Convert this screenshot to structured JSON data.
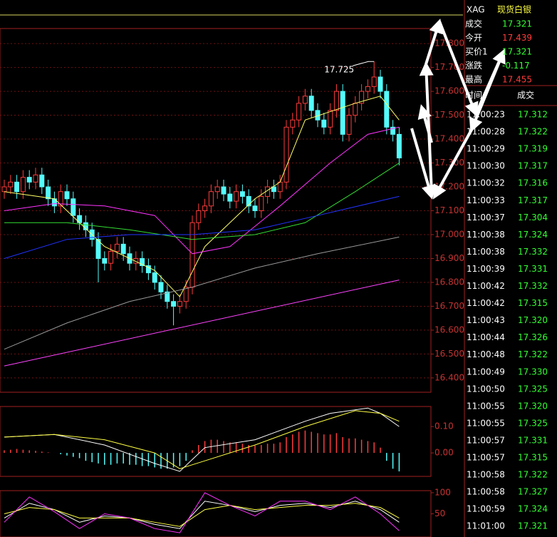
{
  "chart_data": [
    {
      "type": "candlestick",
      "open": [
        17.18,
        17.2,
        17.22,
        17.18,
        17.24,
        17.22,
        17.25,
        17.2,
        17.15,
        17.12,
        17.18,
        17.15,
        17.08,
        17.05,
        17.02,
        16.98,
        16.9,
        16.88,
        16.93,
        16.96,
        16.92,
        16.88,
        16.9,
        16.87,
        16.84,
        16.8,
        16.76,
        16.72,
        16.7,
        16.72,
        16.78,
        17.05,
        17.1,
        17.12,
        17.18,
        17.2,
        17.17,
        17.14,
        17.18,
        17.16,
        17.12,
        17.1,
        17.16,
        17.2,
        17.18,
        17.22,
        17.45,
        17.48,
        17.55,
        17.58,
        17.52,
        17.48,
        17.45,
        17.52,
        17.6,
        17.42,
        17.5,
        17.55,
        17.6,
        17.62,
        17.66,
        17.6,
        17.45,
        17.42
      ],
      "high": [
        17.23,
        17.25,
        17.25,
        17.27,
        17.27,
        17.28,
        17.28,
        17.23,
        17.18,
        17.21,
        17.21,
        17.18,
        17.11,
        17.08,
        17.05,
        17.01,
        16.93,
        16.96,
        16.99,
        16.99,
        16.95,
        16.93,
        16.93,
        16.9,
        16.87,
        16.83,
        16.79,
        16.75,
        16.75,
        16.81,
        17.08,
        17.13,
        17.15,
        17.21,
        17.23,
        17.23,
        17.2,
        17.21,
        17.21,
        17.19,
        17.15,
        17.19,
        17.23,
        17.23,
        17.25,
        17.48,
        17.51,
        17.58,
        17.61,
        17.61,
        17.55,
        17.51,
        17.55,
        17.63,
        17.63,
        17.53,
        17.58,
        17.63,
        17.65,
        17.725,
        17.69,
        17.63,
        17.48,
        17.45
      ],
      "low": [
        17.15,
        17.17,
        17.15,
        17.15,
        17.19,
        17.19,
        17.17,
        17.12,
        17.09,
        17.09,
        17.12,
        17.05,
        17.02,
        16.99,
        16.95,
        16.8,
        16.85,
        16.85,
        16.9,
        16.89,
        16.85,
        16.85,
        16.84,
        16.81,
        16.77,
        16.73,
        16.69,
        16.62,
        16.67,
        16.69,
        16.75,
        17.02,
        17.07,
        17.09,
        17.15,
        17.14,
        17.11,
        17.11,
        17.13,
        17.09,
        17.07,
        17.07,
        17.13,
        17.15,
        17.15,
        17.19,
        17.42,
        17.45,
        17.52,
        17.49,
        17.45,
        17.42,
        17.42,
        17.49,
        17.39,
        17.39,
        17.47,
        17.52,
        17.57,
        17.59,
        17.57,
        17.42,
        17.39,
        17.29
      ],
      "close": [
        17.2,
        17.22,
        17.18,
        17.24,
        17.22,
        17.25,
        17.2,
        17.15,
        17.12,
        17.18,
        17.15,
        17.08,
        17.05,
        17.02,
        16.98,
        16.9,
        16.88,
        16.93,
        16.96,
        16.92,
        16.88,
        16.9,
        16.87,
        16.84,
        16.8,
        16.76,
        16.72,
        16.7,
        16.72,
        16.78,
        17.05,
        17.1,
        17.12,
        17.18,
        17.2,
        17.17,
        17.14,
        17.18,
        17.16,
        17.12,
        17.1,
        17.16,
        17.2,
        17.18,
        17.22,
        17.45,
        17.48,
        17.55,
        17.58,
        17.52,
        17.48,
        17.45,
        17.52,
        17.6,
        17.42,
        17.5,
        17.55,
        17.6,
        17.62,
        17.66,
        17.6,
        17.45,
        17.42,
        17.321
      ],
      "up_color": "#ff3c3c",
      "down_color": "#54fcfc",
      "ylim": [
        16.34,
        17.863
      ],
      "yticks": [
        {
          "value": 16.4,
          "label": "16.400"
        },
        {
          "value": 16.5,
          "label": "16.500"
        },
        {
          "value": 16.6,
          "label": "16.600"
        },
        {
          "value": 16.7,
          "label": "16.700"
        },
        {
          "value": 16.8,
          "label": "16.800"
        },
        {
          "value": 16.9,
          "label": "16.900"
        },
        {
          "value": 17.0,
          "label": "17.000"
        },
        {
          "value": 17.1,
          "label": "17.100"
        },
        {
          "value": 17.2,
          "label": "17.200"
        },
        {
          "value": 17.3,
          "label": "17.300"
        },
        {
          "value": 17.4,
          "label": "17.400"
        },
        {
          "value": 17.5,
          "label": "17.500"
        },
        {
          "value": 17.6,
          "label": "17.600"
        },
        {
          "value": 17.7,
          "label": "17.700"
        },
        {
          "value": 17.8,
          "label": "17.800"
        }
      ],
      "grid": true,
      "annotation": "17.725",
      "lines": [
        {
          "color": "#ffff66",
          "x": [
            0,
            8,
            16,
            24,
            28,
            32,
            40,
            44,
            48,
            56,
            60,
            63
          ],
          "values": [
            17.18,
            17.15,
            16.95,
            16.85,
            16.74,
            16.95,
            17.15,
            17.22,
            17.48,
            17.55,
            17.58,
            17.48
          ]
        },
        {
          "color": "#ff33ff",
          "x": [
            0,
            8,
            16,
            24,
            30,
            36,
            44,
            52,
            58,
            63
          ],
          "values": [
            17.1,
            17.13,
            17.12,
            17.08,
            16.92,
            16.95,
            17.12,
            17.3,
            17.42,
            17.45
          ]
        },
        {
          "color": "#33dd33",
          "x": [
            0,
            10,
            20,
            30,
            40,
            48,
            56,
            63
          ],
          "values": [
            17.05,
            17.05,
            17.02,
            16.98,
            17.0,
            17.05,
            17.18,
            17.3
          ]
        },
        {
          "color": "#2233ff",
          "x": [
            0,
            10,
            20,
            30,
            40,
            50,
            63
          ],
          "values": [
            16.9,
            16.98,
            17.0,
            17.0,
            17.02,
            17.08,
            17.16
          ]
        },
        {
          "color": "#999999",
          "x": [
            0,
            10,
            20,
            30,
            40,
            50,
            63
          ],
          "values": [
            16.52,
            16.63,
            16.72,
            16.78,
            16.86,
            16.92,
            16.99
          ]
        },
        {
          "color": "#ff44ff",
          "x": [
            0,
            63
          ],
          "values": [
            16.45,
            16.81
          ]
        }
      ]
    },
    {
      "type": "macd",
      "values": [
        0.01,
        0.012,
        0.015,
        0.012,
        0.01,
        0.008,
        0.005,
        0.002,
        0,
        -0.005,
        -0.01,
        -0.015,
        -0.02,
        -0.03,
        -0.035,
        -0.04,
        -0.045,
        -0.045,
        -0.04,
        -0.04,
        -0.045,
        -0.045,
        -0.05,
        -0.05,
        -0.055,
        -0.06,
        -0.06,
        -0.055,
        -0.05,
        -0.03,
        0.01,
        0.03,
        0.045,
        0.05,
        0.05,
        0.045,
        0.04,
        0.04,
        0.035,
        0.03,
        0.028,
        0.03,
        0.035,
        0.035,
        0.04,
        0.06,
        0.07,
        0.08,
        0.085,
        0.08,
        0.075,
        0.07,
        0.07,
        0.075,
        0.06,
        0.055,
        0.055,
        0.05,
        0.045,
        0.04,
        0.02,
        -0.03,
        -0.06,
        -0.07
      ],
      "up_color": "#ff3c3c",
      "down_color": "#54fcfc",
      "ylim": [
        -0.089,
        0.176
      ],
      "yticks": [
        {
          "value": 0.1,
          "label": "0.10"
        },
        {
          "value": 0,
          "label": "0.00"
        }
      ],
      "lines": [
        {
          "color": "#ffffff",
          "x": [
            0,
            8,
            16,
            24,
            28,
            32,
            40,
            48,
            52,
            58,
            60,
            63
          ],
          "values": [
            0.06,
            0.07,
            0.03,
            -0.04,
            -0.07,
            0.02,
            0.05,
            0.12,
            0.15,
            0.17,
            0.15,
            0.1
          ]
        },
        {
          "color": "#ffff44",
          "x": [
            0,
            8,
            16,
            24,
            28,
            32,
            40,
            48,
            56,
            60,
            63
          ],
          "values": [
            0.06,
            0.07,
            0.05,
            0.0,
            -0.06,
            -0.03,
            0.03,
            0.1,
            0.16,
            0.15,
            0.12
          ]
        }
      ]
    },
    {
      "type": "line",
      "ylim": [
        -5,
        105
      ],
      "yticks": [
        100,
        50
      ],
      "lines": [
        {
          "color": "#ffffff",
          "x": [
            0,
            4,
            8,
            12,
            16,
            20,
            24,
            28,
            32,
            36,
            40,
            44,
            48,
            52,
            56,
            60,
            63
          ],
          "values": [
            40,
            75,
            60,
            30,
            45,
            40,
            25,
            15,
            80,
            70,
            55,
            70,
            75,
            65,
            80,
            60,
            30
          ]
        },
        {
          "color": "#ffff44",
          "x": [
            0,
            4,
            8,
            12,
            16,
            20,
            24,
            28,
            32,
            36,
            40,
            44,
            48,
            52,
            56,
            60,
            63
          ],
          "values": [
            50,
            65,
            60,
            40,
            40,
            40,
            30,
            20,
            60,
            70,
            60,
            65,
            70,
            70,
            75,
            65,
            40
          ]
        },
        {
          "color": "#ff33ff",
          "x": [
            0,
            4,
            8,
            12,
            16,
            20,
            24,
            28,
            32,
            36,
            40,
            44,
            48,
            52,
            56,
            60,
            63
          ],
          "values": [
            30,
            90,
            55,
            15,
            50,
            40,
            15,
            5,
            100,
            70,
            45,
            80,
            80,
            60,
            90,
            50,
            10
          ]
        }
      ]
    }
  ],
  "quote": {
    "symbol": "XAG",
    "name": "现货白银",
    "rows": [
      {
        "label": "成交",
        "value": "17.321",
        "color": "#33ff33"
      },
      {
        "label": "今开",
        "value": "17.439",
        "color": "#ff3c3c"
      },
      {
        "label": "买价1",
        "value": "17.321",
        "color": "#33ff33"
      },
      {
        "label": "涨跌",
        "value": "-0.117",
        "color": "#33ff33"
      },
      {
        "label": "最高",
        "value": "17.455",
        "color": "#ff3c3c"
      }
    ]
  },
  "trades": {
    "header": [
      "时间",
      "成交"
    ],
    "color": "#33ff33",
    "rows": [
      [
        "11:00:23",
        "17.312"
      ],
      [
        "11:00:28",
        "17.322"
      ],
      [
        "11:00:29",
        "17.319"
      ],
      [
        "11:00:30",
        "17.317"
      ],
      [
        "11:00:32",
        "17.316"
      ],
      [
        "11:00:33",
        "17.317"
      ],
      [
        "11:00:37",
        "17.304"
      ],
      [
        "11:00:38",
        "17.324"
      ],
      [
        "11:00:38",
        "17.332"
      ],
      [
        "11:00:39",
        "17.331"
      ],
      [
        "11:00:42",
        "17.332"
      ],
      [
        "11:00:42",
        "17.315"
      ],
      [
        "11:00:43",
        "17.320"
      ],
      [
        "11:00:44",
        "17.326"
      ],
      [
        "11:00:48",
        "17.322"
      ],
      [
        "11:00:49",
        "17.330"
      ],
      [
        "11:00:50",
        "17.325"
      ],
      [
        "11:00:55",
        "17.320"
      ],
      [
        "11:00:55",
        "17.325"
      ],
      [
        "11:00:57",
        "17.331"
      ],
      [
        "11:00:57",
        "17.315"
      ],
      [
        "11:00:58",
        "17.322"
      ],
      [
        "11:00:58",
        "17.327"
      ],
      [
        "11:00:59",
        "17.324"
      ],
      [
        "11:01:00",
        "17.321"
      ]
    ]
  }
}
